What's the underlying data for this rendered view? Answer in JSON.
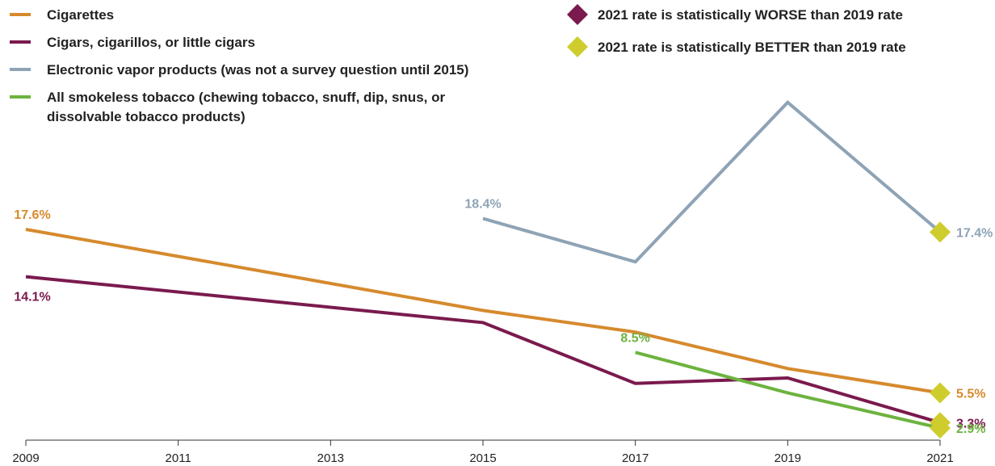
{
  "chart_data": {
    "type": "line",
    "title": "",
    "xlabel": "",
    "ylabel": "",
    "x": [
      2009,
      2011,
      2013,
      2015,
      2017,
      2019,
      2021
    ],
    "x_ticks": [
      "2009",
      "2011",
      "2013",
      "2015",
      "2017",
      "2019",
      "2021"
    ],
    "ylim": [
      2.0,
      28.0
    ],
    "grid": false,
    "legend_position": "top-left",
    "series": [
      {
        "key": "cigarettes",
        "name": "Cigarettes",
        "color": "#d68a2e",
        "points": [
          [
            2009,
            17.6
          ],
          [
            2015,
            11.6
          ],
          [
            2017,
            10.0
          ],
          [
            2019,
            7.3
          ],
          [
            2021,
            5.5
          ]
        ],
        "labels": [
          {
            "x": 2009,
            "y": 17.6,
            "text": "17.6%",
            "pos": "above"
          },
          {
            "x": 2021,
            "y": 5.5,
            "text": "5.5%",
            "pos": "right"
          }
        ]
      },
      {
        "key": "cigars",
        "name": "Cigars, cigarillos, or little cigars",
        "color": "#7a1a4e",
        "points": [
          [
            2009,
            14.1
          ],
          [
            2015,
            10.7
          ],
          [
            2017,
            6.2
          ],
          [
            2019,
            6.6
          ],
          [
            2021,
            3.3
          ]
        ],
        "labels": [
          {
            "x": 2009,
            "y": 14.1,
            "text": "14.1%",
            "pos": "below"
          },
          {
            "x": 2021,
            "y": 3.3,
            "text": "3.3%",
            "pos": "right"
          }
        ]
      },
      {
        "key": "vapor",
        "name": "Electronic vapor products (was not a survey question until 2015)",
        "color": "#8ea3b5",
        "points": [
          [
            2015,
            18.4
          ],
          [
            2017,
            15.2
          ],
          [
            2019,
            27.0
          ],
          [
            2021,
            17.4
          ]
        ],
        "labels": [
          {
            "x": 2015,
            "y": 18.4,
            "text": "18.4%",
            "pos": "above"
          },
          {
            "x": 2021,
            "y": 17.4,
            "text": "17.4%",
            "pos": "right"
          }
        ]
      },
      {
        "key": "smokeless",
        "name": "All smokeless tobacco (chewing tobacco, snuff, dip, snus, or dissolvable tobacco products)",
        "name_lines": [
          "All smokeless tobacco (chewing tobacco, snuff, dip, snus, or",
          "dissolvable tobacco products)"
        ],
        "color": "#6db33f",
        "points": [
          [
            2017,
            8.5
          ],
          [
            2019,
            5.5
          ],
          [
            2021,
            2.9
          ]
        ],
        "labels": [
          {
            "x": 2017,
            "y": 8.5,
            "text": "8.5%",
            "pos": "above"
          },
          {
            "x": 2021,
            "y": 2.9,
            "text": "2.9%",
            "pos": "right"
          }
        ]
      }
    ],
    "markers": [
      {
        "series": "cigarettes",
        "x": 2021,
        "y": 5.5,
        "type": "better"
      },
      {
        "series": "cigars",
        "x": 2021,
        "y": 3.3,
        "type": "better"
      },
      {
        "series": "vapor",
        "x": 2021,
        "y": 17.4,
        "type": "better"
      },
      {
        "series": "smokeless",
        "x": 2021,
        "y": 2.9,
        "type": "better"
      }
    ],
    "marker_legend": [
      {
        "type": "worse",
        "label": "2021 rate is statistically WORSE than 2019 rate",
        "color": "#7a1a4e"
      },
      {
        "type": "better",
        "label": "2021 rate is statistically BETTER than 2019 rate",
        "color": "#cfcd2e"
      }
    ]
  }
}
